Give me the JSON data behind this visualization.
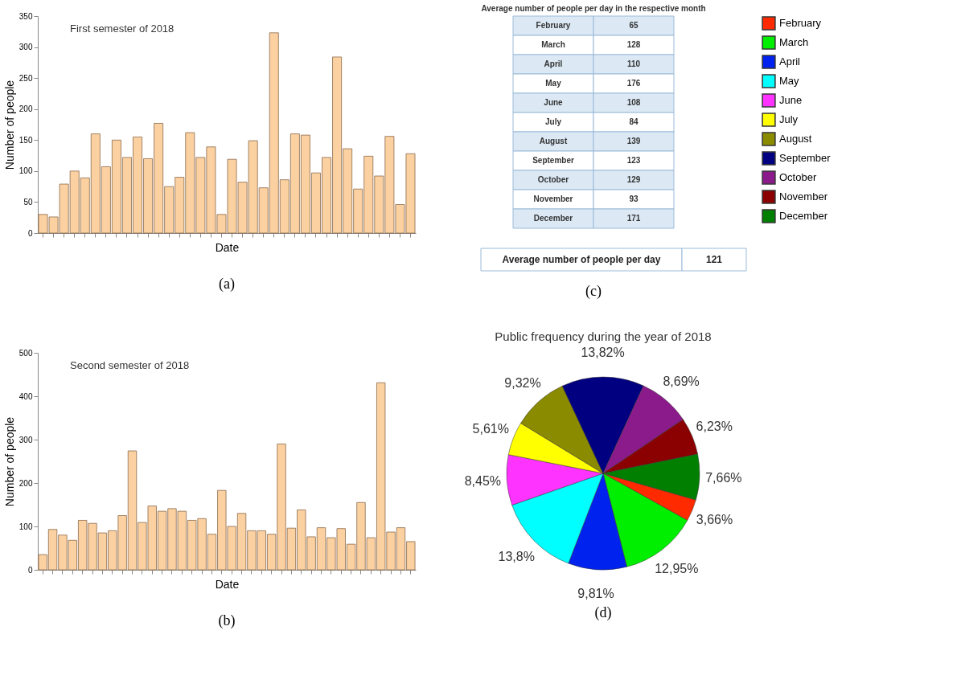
{
  "chart_data": [
    {
      "type": "bar",
      "title": "First semester of 2018",
      "xlabel": "Date",
      "ylabel": "Number of people",
      "categories": [
        null,
        null,
        null,
        null,
        null,
        null,
        null,
        null,
        null,
        null,
        null,
        null,
        null,
        null,
        null,
        null,
        null,
        null,
        null,
        null,
        null,
        null,
        null,
        null,
        null,
        null,
        null,
        null,
        null,
        null,
        null,
        null,
        null,
        null,
        null,
        null
      ],
      "values": [
        30,
        26,
        79,
        100,
        89,
        160,
        107,
        150,
        122,
        155,
        120,
        177,
        75,
        90,
        162,
        122,
        139,
        30,
        119,
        82,
        149,
        73,
        323,
        86,
        160,
        158,
        97,
        122,
        284,
        136,
        71,
        124,
        92,
        156,
        46,
        128
      ],
      "color": "#fcd1a1",
      "ylim": [
        0,
        350
      ],
      "yticks": [
        0,
        50,
        100,
        150,
        200,
        250,
        300,
        350
      ],
      "grid": false,
      "annotations": [
        "(a)"
      ]
    },
    {
      "type": "other",
      "title": "Average number of people per day in the respective month",
      "categories": [
        "February",
        "March",
        "April",
        "May",
        "June",
        "July",
        "August",
        "September",
        "October",
        "November",
        "December"
      ],
      "values": [
        65,
        128,
        110,
        176,
        108,
        84,
        139,
        123,
        129,
        93,
        171
      ],
      "data_labels": true,
      "annotations": [
        "Average number of people per day",
        "121",
        "(c)"
      ]
    },
    {
      "type": "bar",
      "title": "Second semester of 2018",
      "xlabel": "Date",
      "ylabel": "Number of people",
      "categories": [
        null,
        null,
        null,
        null,
        null,
        null,
        null,
        null,
        null,
        null,
        null,
        null,
        null,
        null,
        null,
        null,
        null,
        null,
        null,
        null,
        null,
        null,
        null,
        null,
        null,
        null,
        null,
        null,
        null,
        null,
        null,
        null,
        null,
        null,
        null,
        null,
        null,
        null
      ],
      "values": [
        35,
        93,
        80,
        68,
        114,
        107,
        85,
        90,
        125,
        274,
        109,
        147,
        135,
        141,
        135,
        114,
        118,
        82,
        183,
        100,
        130,
        90,
        90,
        82,
        290,
        96,
        138,
        76,
        97,
        74,
        95,
        59,
        155,
        74,
        431,
        87,
        97,
        65
      ],
      "color": "#fcd1a1",
      "ylim": [
        0,
        500
      ],
      "yticks": [
        0,
        100,
        200,
        300,
        400,
        500
      ],
      "grid": false,
      "annotations": [
        "(b)"
      ]
    },
    {
      "type": "pie",
      "title": "Public frequency during the year of 2018",
      "categories": [
        "February",
        "March",
        "April",
        "May",
        "June",
        "July",
        "August",
        "September",
        "October",
        "November",
        "December"
      ],
      "values": [
        3.66,
        12.95,
        9.81,
        13.8,
        8.45,
        5.61,
        9.32,
        13.82,
        8.69,
        6.23,
        7.66
      ],
      "value_labels": [
        "3,66%",
        "12,95%",
        "9,81%",
        "13,8%",
        "8,45%",
        "5,61%",
        "9,32%",
        "13,82%",
        "8,69%",
        "6,23%",
        "7,66%"
      ],
      "colors": [
        "#ff2a00",
        "#00ee00",
        "#0022ee",
        "#00ffff",
        "#ff33ff",
        "#ffff00",
        "#8b8b00",
        "#000080",
        "#8b1a8b",
        "#8b0000",
        "#007f00"
      ],
      "legend": "right",
      "annotations": [
        "(d)"
      ]
    }
  ]
}
